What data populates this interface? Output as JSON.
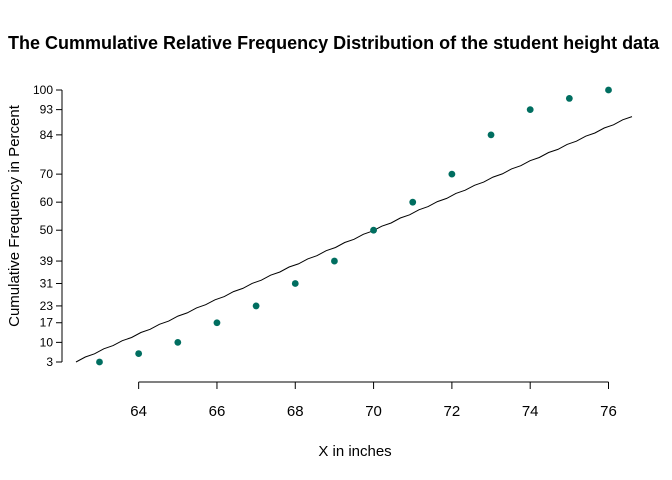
{
  "chart_data": {
    "type": "scatter",
    "title": "The Cummulative Relative Frequency Distribution of the student height data",
    "xlabel": "X in inches",
    "ylabel": "Cumulative Frequency in Percent",
    "x_ticks": [
      64,
      66,
      68,
      70,
      72,
      74,
      76
    ],
    "y_ticks": [
      3,
      10,
      17,
      23,
      31,
      39,
      50,
      60,
      70,
      84,
      93,
      100
    ],
    "xlim": [
      62.4,
      76.6
    ],
    "ylim": [
      3,
      100
    ],
    "point_color": "#006E60",
    "line_color": "#000000",
    "series": [
      {
        "x": [
          63,
          64,
          65,
          66,
          67,
          68,
          69,
          70,
          71,
          72,
          73,
          74,
          75,
          76
        ],
        "y": [
          3,
          6,
          10,
          17,
          23,
          31,
          39,
          50,
          60,
          70,
          84,
          93,
          97,
          100
        ]
      }
    ],
    "trend_line": {
      "x": [
        62.4,
        76.6
      ],
      "y": [
        3,
        90.5
      ]
    },
    "grid": false,
    "legend": "none"
  }
}
